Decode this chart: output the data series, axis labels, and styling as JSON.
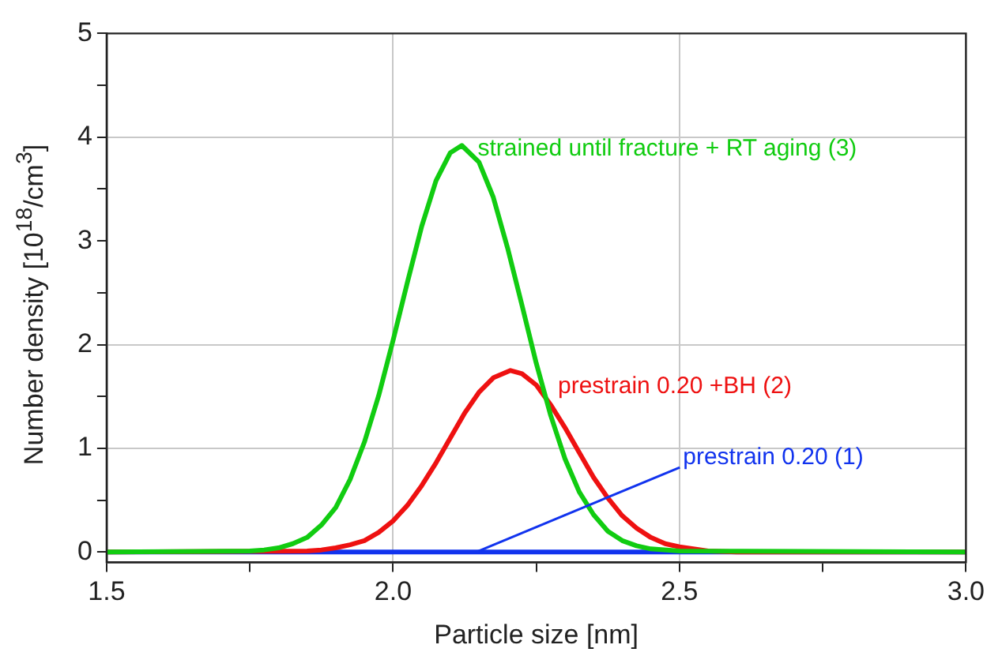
{
  "chart_data": {
    "type": "line",
    "xlabel": "Particle size [nm]",
    "ylabel": "Number density [10$^{18}$/cm$^{3}$]",
    "xlim": [
      1.5,
      3.0
    ],
    "ylim": [
      -0.1,
      5
    ],
    "xticks": [
      {
        "value": 1.5,
        "label": "1.5"
      },
      {
        "value": 1.75,
        "label": null
      },
      {
        "value": 2,
        "label": "2.0"
      },
      {
        "value": 2.25,
        "label": null
      },
      {
        "value": 2.5,
        "label": "2.5"
      },
      {
        "value": 2.75,
        "label": null
      },
      {
        "value": 3,
        "label": "3.0"
      }
    ],
    "yticks": [
      0,
      {
        "value": 0.5,
        "label": null
      },
      1,
      {
        "value": 1.5,
        "label": null
      },
      2,
      {
        "value": 2.5,
        "label": null
      },
      3,
      {
        "value": 3.5,
        "label": null
      },
      4,
      {
        "value": 4.5,
        "label": null
      },
      5
    ],
    "grid": true,
    "legend": false,
    "marker": "none",
    "line_style": "solid",
    "series": [
      {
        "name": "strained until fracture + RT aging (3)",
        "color": "#11cc11",
        "x": [
          1.5,
          1.75,
          1.775,
          1.8,
          1.825,
          1.85,
          1.875,
          1.9,
          1.925,
          1.95,
          1.975,
          2.0,
          2.025,
          2.05,
          2.075,
          2.1,
          2.12,
          2.15,
          2.175,
          2.2,
          2.225,
          2.25,
          2.275,
          2.3,
          2.325,
          2.35,
          2.375,
          2.4,
          2.425,
          2.45,
          2.5,
          3.0
        ],
        "values": [
          0,
          0.01,
          0.02,
          0.04,
          0.08,
          0.14,
          0.26,
          0.43,
          0.7,
          1.06,
          1.51,
          2.04,
          2.6,
          3.14,
          3.58,
          3.85,
          3.92,
          3.76,
          3.42,
          2.93,
          2.38,
          1.82,
          1.32,
          0.9,
          0.58,
          0.36,
          0.2,
          0.11,
          0.06,
          0.03,
          0.01,
          0
        ]
      },
      {
        "name": "prestrain 0.20 +BH (2)",
        "color": "#ee1111",
        "x": [
          1.5,
          1.85,
          1.875,
          1.9,
          1.925,
          1.95,
          1.975,
          2.0,
          2.025,
          2.05,
          2.075,
          2.1,
          2.125,
          2.15,
          2.175,
          2.205,
          2.225,
          2.25,
          2.275,
          2.3,
          2.325,
          2.35,
          2.375,
          2.4,
          2.425,
          2.45,
          2.475,
          2.5,
          2.55,
          2.6,
          3.0
        ],
        "values": [
          0,
          0.01,
          0.02,
          0.04,
          0.07,
          0.11,
          0.19,
          0.3,
          0.45,
          0.64,
          0.86,
          1.1,
          1.34,
          1.54,
          1.68,
          1.75,
          1.72,
          1.61,
          1.42,
          1.2,
          0.96,
          0.72,
          0.52,
          0.35,
          0.23,
          0.14,
          0.08,
          0.05,
          0.01,
          0,
          0
        ]
      },
      {
        "name": "prestrain 0.20 (1)",
        "color": "#1133ee",
        "x": [
          1.5,
          3.0
        ],
        "values": [
          0,
          0
        ]
      }
    ]
  }
}
